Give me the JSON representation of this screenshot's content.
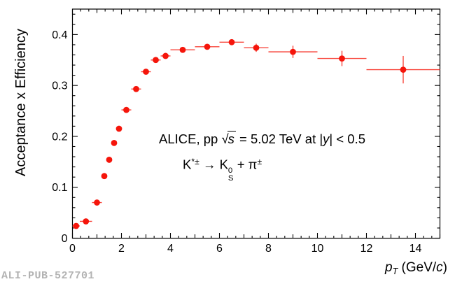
{
  "watermark": "ALI-PUB-527701",
  "colors": {
    "marker": "#f5150b",
    "error_bar": "#f8463c",
    "axis": "#000000",
    "watermark_text": "#b3b3b3",
    "background": "#ffffff"
  },
  "chart_data": {
    "type": "scatter",
    "title": "",
    "ylabel": "Acceptance x Efficiency",
    "xlabel_plain": "pT (GeV/c)",
    "xlabel_parts": [
      {
        "t": "p",
        "s": "i"
      },
      {
        "t": "T",
        "s": "sub_i"
      },
      {
        "t": " (GeV/",
        "s": "n"
      },
      {
        "t": "c",
        "s": "i"
      },
      {
        "t": ")",
        "s": "n"
      }
    ],
    "xlim": [
      0,
      15
    ],
    "ylim": [
      0,
      0.45
    ],
    "grid": false,
    "legend": false,
    "x_major_tick_step": 2,
    "x_minor_ticks_per_unit": 3,
    "y_major_tick_step": 0.1,
    "y_minor_tick_step": 0.02,
    "x_tick_labels": [
      {
        "v": 0,
        "label": "0"
      },
      {
        "v": 2,
        "label": "2"
      },
      {
        "v": 4,
        "label": "4"
      },
      {
        "v": 6,
        "label": "6"
      },
      {
        "v": 8,
        "label": "8"
      },
      {
        "v": 10,
        "label": "10"
      },
      {
        "v": 12,
        "label": "12"
      },
      {
        "v": 14,
        "label": "14"
      }
    ],
    "y_tick_labels": [
      {
        "v": 0,
        "label": "0"
      },
      {
        "v": 0.1,
        "label": "0.1"
      },
      {
        "v": 0.2,
        "label": "0.2"
      },
      {
        "v": 0.3,
        "label": "0.3"
      },
      {
        "v": 0.4,
        "label": "0.4"
      }
    ],
    "annotations": [
      {
        "name": "collision-energy",
        "plain": "ALICE, pp √s = 5.02 TeV at |y| < 0.5",
        "parts": [
          {
            "t": "ALICE, pp ",
            "s": "n"
          },
          {
            "t": "√",
            "s": "n"
          },
          {
            "t": "s",
            "s": "sqrt"
          },
          {
            "t": " = 5.02 TeV at |",
            "s": "n"
          },
          {
            "t": "y",
            "s": "i"
          },
          {
            "t": "| < 0.5",
            "s": "n"
          }
        ]
      },
      {
        "name": "decay-channel",
        "plain": "K*± → K0S + π±",
        "parts": [
          {
            "t": "K",
            "s": "n"
          },
          {
            "t": "*±",
            "s": "sup"
          },
          {
            "t": " → ",
            "s": "n"
          },
          {
            "t": "K",
            "s": "n"
          },
          {
            "s": "stack",
            "top": "0",
            "bottom": "S"
          },
          {
            "t": " + ",
            "s": "n"
          },
          {
            "t": "π",
            "s": "n"
          },
          {
            "t": "±",
            "s": "sup"
          }
        ]
      }
    ],
    "series": [
      {
        "name": "acceptance-x-efficiency",
        "marker": "filled-circle",
        "points": [
          {
            "x": 0.15,
            "xerr": 0.15,
            "y": 0.024,
            "yerr": 0.001
          },
          {
            "x": 0.55,
            "xerr": 0.25,
            "y": 0.033,
            "yerr": 0.001
          },
          {
            "x": 1.0,
            "xerr": 0.2,
            "y": 0.07,
            "yerr": 0.001
          },
          {
            "x": 1.3,
            "xerr": 0.1,
            "y": 0.122,
            "yerr": 0.001
          },
          {
            "x": 1.5,
            "xerr": 0.1,
            "y": 0.154,
            "yerr": 0.001
          },
          {
            "x": 1.7,
            "xerr": 0.1,
            "y": 0.187,
            "yerr": 0.001
          },
          {
            "x": 1.9,
            "xerr": 0.1,
            "y": 0.215,
            "yerr": 0.001
          },
          {
            "x": 2.2,
            "xerr": 0.2,
            "y": 0.252,
            "yerr": 0.002
          },
          {
            "x": 2.6,
            "xerr": 0.2,
            "y": 0.293,
            "yerr": 0.002
          },
          {
            "x": 3.0,
            "xerr": 0.2,
            "y": 0.327,
            "yerr": 0.002
          },
          {
            "x": 3.4,
            "xerr": 0.2,
            "y": 0.35,
            "yerr": 0.002
          },
          {
            "x": 3.8,
            "xerr": 0.2,
            "y": 0.358,
            "yerr": 0.002
          },
          {
            "x": 4.5,
            "xerr": 0.5,
            "y": 0.37,
            "yerr": 0.003
          },
          {
            "x": 5.5,
            "xerr": 0.5,
            "y": 0.376,
            "yerr": 0.003
          },
          {
            "x": 6.5,
            "xerr": 0.5,
            "y": 0.385,
            "yerr": 0.005
          },
          {
            "x": 7.5,
            "xerr": 0.5,
            "y": 0.374,
            "yerr": 0.008
          },
          {
            "x": 9.0,
            "xerr": 1.0,
            "y": 0.366,
            "yerr": 0.012
          },
          {
            "x": 11.0,
            "xerr": 1.0,
            "y": 0.353,
            "yerr": 0.015
          },
          {
            "x": 13.5,
            "xerr": 1.5,
            "y": 0.331,
            "yerr": 0.027
          }
        ]
      }
    ]
  }
}
